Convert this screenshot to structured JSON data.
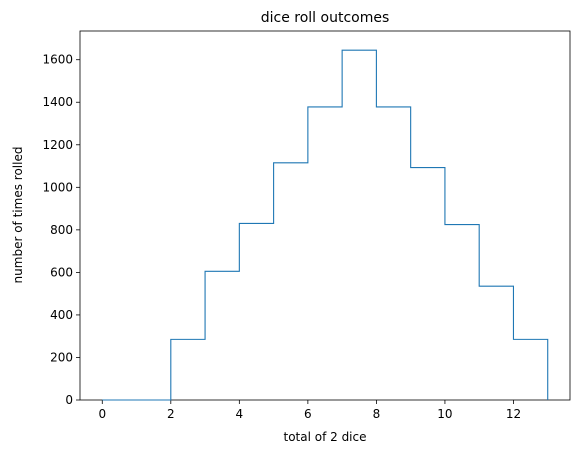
{
  "chart_data": {
    "type": "histogram-step",
    "title": "dice roll outcomes",
    "xlabel": "total of 2 dice",
    "ylabel": "number of times rolled",
    "xlim": [
      -0.65,
      13.65
    ],
    "ylim": [
      0,
      1735
    ],
    "xticks": [
      0,
      2,
      4,
      6,
      8,
      10,
      12
    ],
    "yticks": [
      0,
      200,
      400,
      600,
      800,
      1000,
      1200,
      1400,
      1600
    ],
    "bins": [
      0,
      1,
      2,
      3,
      4,
      5,
      6,
      7,
      8,
      9,
      10,
      11,
      12,
      13
    ],
    "counts": [
      0,
      0,
      285,
      605,
      830,
      1115,
      1378,
      1645,
      1378,
      1093,
      825,
      535,
      285
    ],
    "line_color": "#1f77b4",
    "grid": false
  }
}
